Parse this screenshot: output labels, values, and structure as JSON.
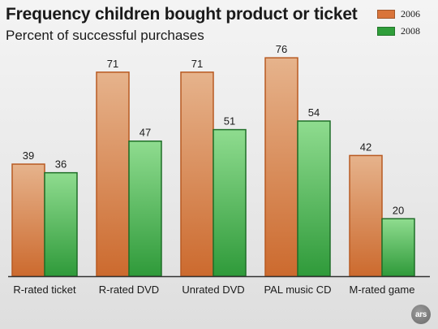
{
  "chart_data": {
    "type": "bar",
    "title": "Frequency children bought product or ticket",
    "subtitle": "Percent of successful purchases",
    "categories": [
      "R-rated ticket",
      "R-rated DVD",
      "Unrated DVD",
      "PAL music CD",
      "M-rated game"
    ],
    "series": [
      {
        "name": "2006",
        "values": [
          39,
          71,
          71,
          76,
          42
        ],
        "color": "#d9743a"
      },
      {
        "name": "2008",
        "values": [
          36,
          47,
          51,
          54,
          20
        ],
        "color": "#2f9e3a"
      }
    ],
    "xlabel": "",
    "ylabel": "",
    "ylim": [
      0,
      80
    ],
    "grid": false,
    "legend": "top-right",
    "data_labels": true
  },
  "logo": {
    "text": "ars"
  }
}
